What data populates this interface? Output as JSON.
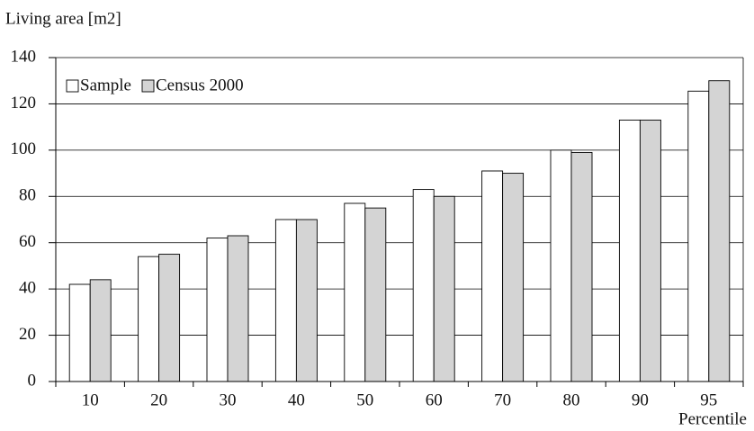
{
  "chart_data": {
    "type": "bar",
    "y_label": "Living area [m2]",
    "x_label": "Percentile",
    "categories": [
      "10",
      "20",
      "30",
      "40",
      "50",
      "60",
      "70",
      "80",
      "90",
      "95"
    ],
    "series": [
      {
        "name": "Sample",
        "color": "#ffffff",
        "values": [
          42,
          54,
          62,
          70,
          77,
          83,
          91,
          100,
          113,
          125.5
        ]
      },
      {
        "name": "Census 2000",
        "color": "#d4d4d4",
        "values": [
          44,
          55,
          63,
          70,
          75,
          80,
          90,
          99,
          113,
          130
        ]
      }
    ],
    "ylim": [
      0,
      140
    ],
    "yticks": [
      0,
      20,
      40,
      60,
      80,
      100,
      120,
      140
    ],
    "grid": true,
    "legend": "top-left"
  }
}
